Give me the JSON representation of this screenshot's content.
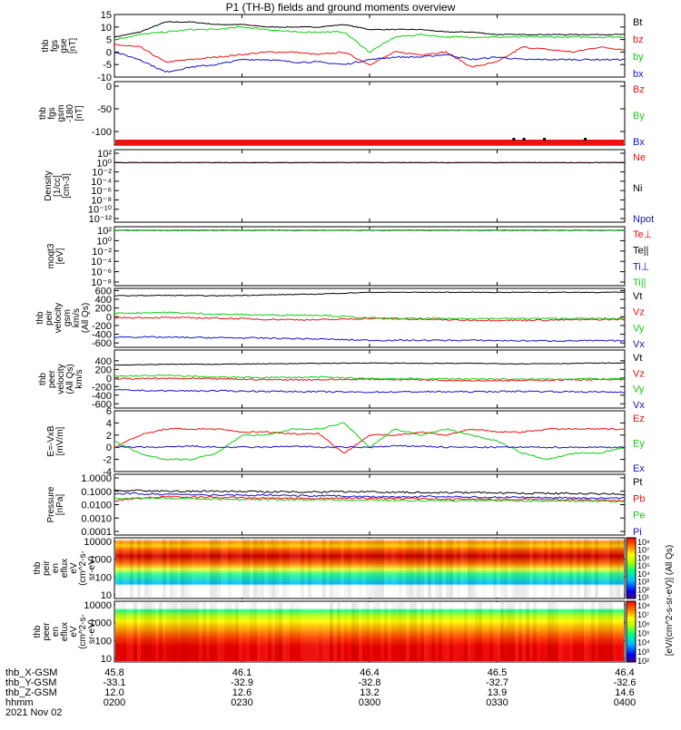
{
  "title": "P1 (TH-B) fields and ground moments overview",
  "date": "2021 Nov 02",
  "colors": {
    "black": "#000000",
    "red": "#ee1111",
    "green": "#11cc11",
    "blue": "#1111cc"
  },
  "chart_data": [
    {
      "type": "line",
      "panel": "fgs_gse",
      "ylabel": [
        "thb",
        "fgs",
        "gse",
        "[nT]"
      ],
      "ylim": [
        -10,
        15
      ],
      "yticks": [
        "15",
        "10",
        "5",
        "0",
        "-5",
        "-10"
      ],
      "x": [
        0,
        0.05,
        0.1,
        0.15,
        0.2,
        0.25,
        0.3,
        0.35,
        0.4,
        0.45,
        0.5,
        0.55,
        0.6,
        0.65,
        0.7,
        0.75,
        0.8,
        0.85,
        0.9,
        0.95,
        1.0
      ],
      "series": [
        {
          "name": "Bt",
          "color": "black",
          "values": [
            6,
            8,
            12,
            12,
            11,
            11,
            10,
            10,
            10,
            11,
            9,
            9,
            9,
            8,
            8,
            7,
            7,
            7,
            7,
            7,
            7
          ]
        },
        {
          "name": "bz",
          "color": "red",
          "values": [
            3,
            2,
            -4,
            -3,
            -2,
            -1,
            0,
            0,
            -1,
            0,
            -5,
            0,
            -1,
            0,
            -6,
            -4,
            2,
            1,
            0,
            2,
            1
          ]
        },
        {
          "name": "by",
          "color": "green",
          "values": [
            5,
            7,
            8,
            9,
            9,
            10,
            9,
            8,
            8,
            8,
            0,
            6,
            7,
            6,
            6,
            6,
            6,
            6,
            6,
            6,
            6
          ]
        },
        {
          "name": "bx",
          "color": "blue",
          "values": [
            0,
            -3,
            -8,
            -6,
            -5,
            -3,
            -3,
            -4,
            -4,
            -5,
            -3,
            -2,
            -2,
            -1,
            -3,
            -2,
            -3,
            -3,
            -3,
            -3,
            -3
          ]
        }
      ]
    },
    {
      "type": "line",
      "panel": "fgs_gsm",
      "ylabel": [
        "thb",
        "fgs",
        "gsm",
        "-180",
        "[nT]"
      ],
      "ylim": [
        -130,
        10
      ],
      "yticks": [
        "0",
        "-50",
        "-100"
      ],
      "x": [
        0,
        0.5,
        1.0
      ],
      "series": [
        {
          "name": "Bz",
          "color": "red",
          "values": [
            null,
            null,
            null
          ]
        },
        {
          "name": "By",
          "color": "green",
          "values": [
            null,
            null,
            null
          ]
        },
        {
          "name": "Bx",
          "color": "blue",
          "values": [
            null,
            null,
            null
          ]
        }
      ]
    },
    {
      "type": "line",
      "panel": "density",
      "ylabel": [
        "Density",
        "[1/cc]",
        "[cm-3]"
      ],
      "ylog": true,
      "yticks": [
        "10²",
        "10⁰",
        "10⁻²",
        "10⁻⁴",
        "10⁻⁶",
        "10⁻⁸",
        "10⁻¹⁰",
        "10⁻¹²"
      ],
      "x": [
        0,
        0.25,
        0.5,
        0.75,
        1.0
      ],
      "series": [
        {
          "name": "Ne",
          "color": "red",
          "values": [
            1,
            1,
            1,
            1,
            1
          ]
        },
        {
          "name": "Ni",
          "color": "black",
          "values": [
            1,
            1,
            1,
            1,
            1
          ]
        },
        {
          "name": "Npot",
          "color": "blue",
          "values": [
            null,
            null,
            null,
            null,
            null
          ]
        }
      ]
    },
    {
      "type": "line",
      "panel": "temperature",
      "ylabel": [
        "moqt3",
        "[eV]"
      ],
      "ylog": true,
      "yticks": [
        "10²",
        "10⁰",
        "10⁻²",
        "10⁻⁴",
        "10⁻⁶",
        "10⁻⁸"
      ],
      "x": [
        0,
        0.5,
        1.0
      ],
      "series": [
        {
          "name": "Te⊥",
          "color": "red",
          "values": [
            100,
            100,
            100
          ]
        },
        {
          "name": "Te||",
          "color": "black",
          "values": [
            100,
            100,
            100
          ]
        },
        {
          "name": "Ti⊥",
          "color": "blue",
          "values": [
            100,
            100,
            100
          ]
        },
        {
          "name": "Ti||",
          "color": "green",
          "values": [
            100,
            100,
            100
          ]
        }
      ]
    },
    {
      "type": "line",
      "panel": "peir_velocity",
      "ylabel": [
        "thb",
        "peir",
        "velocity",
        "gsm",
        "km/s",
        "(All Qs)"
      ],
      "ylim": [
        -700,
        650
      ],
      "yticks": [
        "600",
        "400",
        "200",
        "0",
        "-200",
        "-400",
        "-600"
      ],
      "x": [
        0,
        0.1,
        0.2,
        0.3,
        0.4,
        0.5,
        0.6,
        0.7,
        0.8,
        0.9,
        1.0
      ],
      "series": [
        {
          "name": "Vt",
          "color": "black",
          "values": [
            480,
            490,
            480,
            500,
            520,
            560,
            560,
            560,
            560,
            560,
            560
          ]
        },
        {
          "name": "Vz",
          "color": "red",
          "values": [
            -20,
            -20,
            -30,
            -60,
            -70,
            -40,
            -60,
            -80,
            -80,
            -70,
            -60
          ]
        },
        {
          "name": "Vy",
          "color": "green",
          "values": [
            80,
            100,
            60,
            40,
            40,
            -30,
            -40,
            -40,
            -40,
            -40,
            -40
          ]
        },
        {
          "name": "Vx",
          "color": "blue",
          "values": [
            -460,
            -470,
            -480,
            -490,
            -510,
            -540,
            -540,
            -540,
            -550,
            -550,
            -550
          ]
        }
      ]
    },
    {
      "type": "line",
      "panel": "peer_velocity",
      "ylabel": [
        "thb",
        "peer",
        "velocity",
        "(All Qs)",
        "km/s"
      ],
      "ylim": [
        -700,
        650
      ],
      "yticks": [
        "400",
        "200",
        "0",
        "-200",
        "-400",
        "-600"
      ],
      "x": [
        0,
        0.1,
        0.2,
        0.3,
        0.4,
        0.5,
        0.6,
        0.7,
        0.8,
        0.9,
        1.0
      ],
      "series": [
        {
          "name": "Vt",
          "color": "black",
          "values": [
            300,
            320,
            320,
            330,
            340,
            350,
            340,
            340,
            330,
            340,
            350
          ]
        },
        {
          "name": "Vz",
          "color": "red",
          "values": [
            -20,
            -10,
            -20,
            -40,
            -40,
            -30,
            -40,
            -60,
            -60,
            -40,
            -40
          ]
        },
        {
          "name": "Vy",
          "color": "green",
          "values": [
            40,
            60,
            20,
            10,
            20,
            -10,
            -20,
            -20,
            -30,
            -20,
            -20
          ]
        },
        {
          "name": "Vx",
          "color": "blue",
          "values": [
            -280,
            -300,
            -300,
            -310,
            -320,
            -330,
            -320,
            -320,
            -310,
            -320,
            -330
          ]
        }
      ]
    },
    {
      "type": "line",
      "panel": "efield",
      "ylabel": [
        "E=-VxB",
        "[mV/m]"
      ],
      "ylim": [
        -4,
        6
      ],
      "yticks": [
        "6",
        "4",
        "2",
        "0",
        "-2",
        "-4"
      ],
      "x": [
        0,
        0.05,
        0.1,
        0.15,
        0.2,
        0.25,
        0.3,
        0.35,
        0.4,
        0.45,
        0.5,
        0.55,
        0.6,
        0.65,
        0.7,
        0.75,
        0.8,
        0.85,
        0.9,
        0.95,
        1.0
      ],
      "series": [
        {
          "name": "Ez",
          "color": "red",
          "values": [
            0,
            2,
            3,
            3,
            3,
            2.5,
            2.5,
            2.2,
            2.3,
            -1,
            2,
            2,
            2.5,
            2,
            3,
            2.5,
            2.5,
            3,
            3,
            3,
            3
          ]
        },
        {
          "name": "Ey",
          "color": "green",
          "values": [
            1,
            -1,
            -2,
            -2,
            -1,
            2,
            2,
            3,
            3,
            4,
            0,
            3,
            2,
            3,
            2,
            1,
            -1,
            -2,
            -1,
            -1,
            0
          ]
        },
        {
          "name": "Ex",
          "color": "blue",
          "values": [
            0,
            0,
            0,
            0.2,
            0,
            0,
            0,
            0.2,
            0,
            0,
            0,
            0.2,
            0.2,
            0,
            0,
            0,
            0,
            0,
            0,
            0,
            0
          ]
        }
      ]
    },
    {
      "type": "line",
      "panel": "pressure",
      "ylabel": [
        "Pressure",
        "[nPa]"
      ],
      "ylog": true,
      "yticks": [
        "1.0000",
        "0.1000",
        "0.0100",
        "0.0010",
        "0.0001"
      ],
      "x": [
        0,
        0.1,
        0.2,
        0.3,
        0.4,
        0.5,
        0.6,
        0.7,
        0.8,
        0.9,
        1.0
      ],
      "series": [
        {
          "name": "Pt",
          "color": "black",
          "values": [
            0.12,
            0.1,
            0.1,
            0.09,
            0.09,
            0.09,
            0.08,
            0.08,
            0.07,
            0.07,
            0.06
          ]
        },
        {
          "name": "Pb",
          "color": "red",
          "values": [
            0.02,
            0.04,
            0.035,
            0.03,
            0.03,
            0.03,
            0.028,
            0.025,
            0.025,
            0.023,
            0.02
          ]
        },
        {
          "name": "Pe",
          "color": "green",
          "values": [
            0.03,
            0.03,
            0.025,
            0.024,
            0.023,
            0.022,
            0.02,
            0.02,
            0.019,
            0.018,
            0.017
          ]
        },
        {
          "name": "Pi",
          "color": "blue",
          "values": [
            0.07,
            0.06,
            0.05,
            0.05,
            0.045,
            0.04,
            0.04,
            0.037,
            0.035,
            0.032,
            0.03
          ]
        }
      ]
    },
    {
      "type": "heatmap",
      "panel": "peir_eflux",
      "ylabel": [
        "thb",
        "peir",
        "en",
        "eflux",
        "eV",
        "(cm^2-s-",
        "sr-eV)"
      ],
      "ylog": true,
      "yticks": [
        "10000",
        "1000",
        "100",
        "10"
      ],
      "colorbar_label": "[eV/(cm^2-s-sr-eV)] (All Qs)",
      "colorbar_ticks": [
        "10⁸",
        "10⁷",
        "10⁶",
        "10⁵",
        "10⁴",
        "10³",
        "10²",
        "10¹"
      ]
    },
    {
      "type": "heatmap",
      "panel": "peer_eflux",
      "ylabel": [
        "thb",
        "peer",
        "en",
        "eflux",
        "eV",
        "(cm^2-s-",
        "sr-eV)"
      ],
      "ylog": true,
      "yticks": [
        "10000",
        "1000",
        "100",
        "10"
      ],
      "colorbar_label": "[eV/(cm^2-s-sr-eV)] (All Qs)",
      "colorbar_ticks": [
        "10⁸",
        "10⁷",
        "10⁶",
        "10⁵",
        "10⁴",
        "10³",
        "10²"
      ]
    }
  ],
  "xaxis": {
    "row_labels": [
      "thb_X-GSM",
      "thb_Y-GSM",
      "thb_Z-GSM",
      "hhmm"
    ],
    "ticks": [
      [
        "45.8",
        "-33.1",
        "12.0",
        "0200"
      ],
      [
        "46.1",
        "-32.9",
        "12.6",
        "0230"
      ],
      [
        "46.4",
        "-32.8",
        "13.2",
        "0300"
      ],
      [
        "46.5",
        "-32.7",
        "13.9",
        "0330"
      ],
      [
        "46.4",
        "-32.6",
        "14.6",
        "0400"
      ]
    ]
  }
}
